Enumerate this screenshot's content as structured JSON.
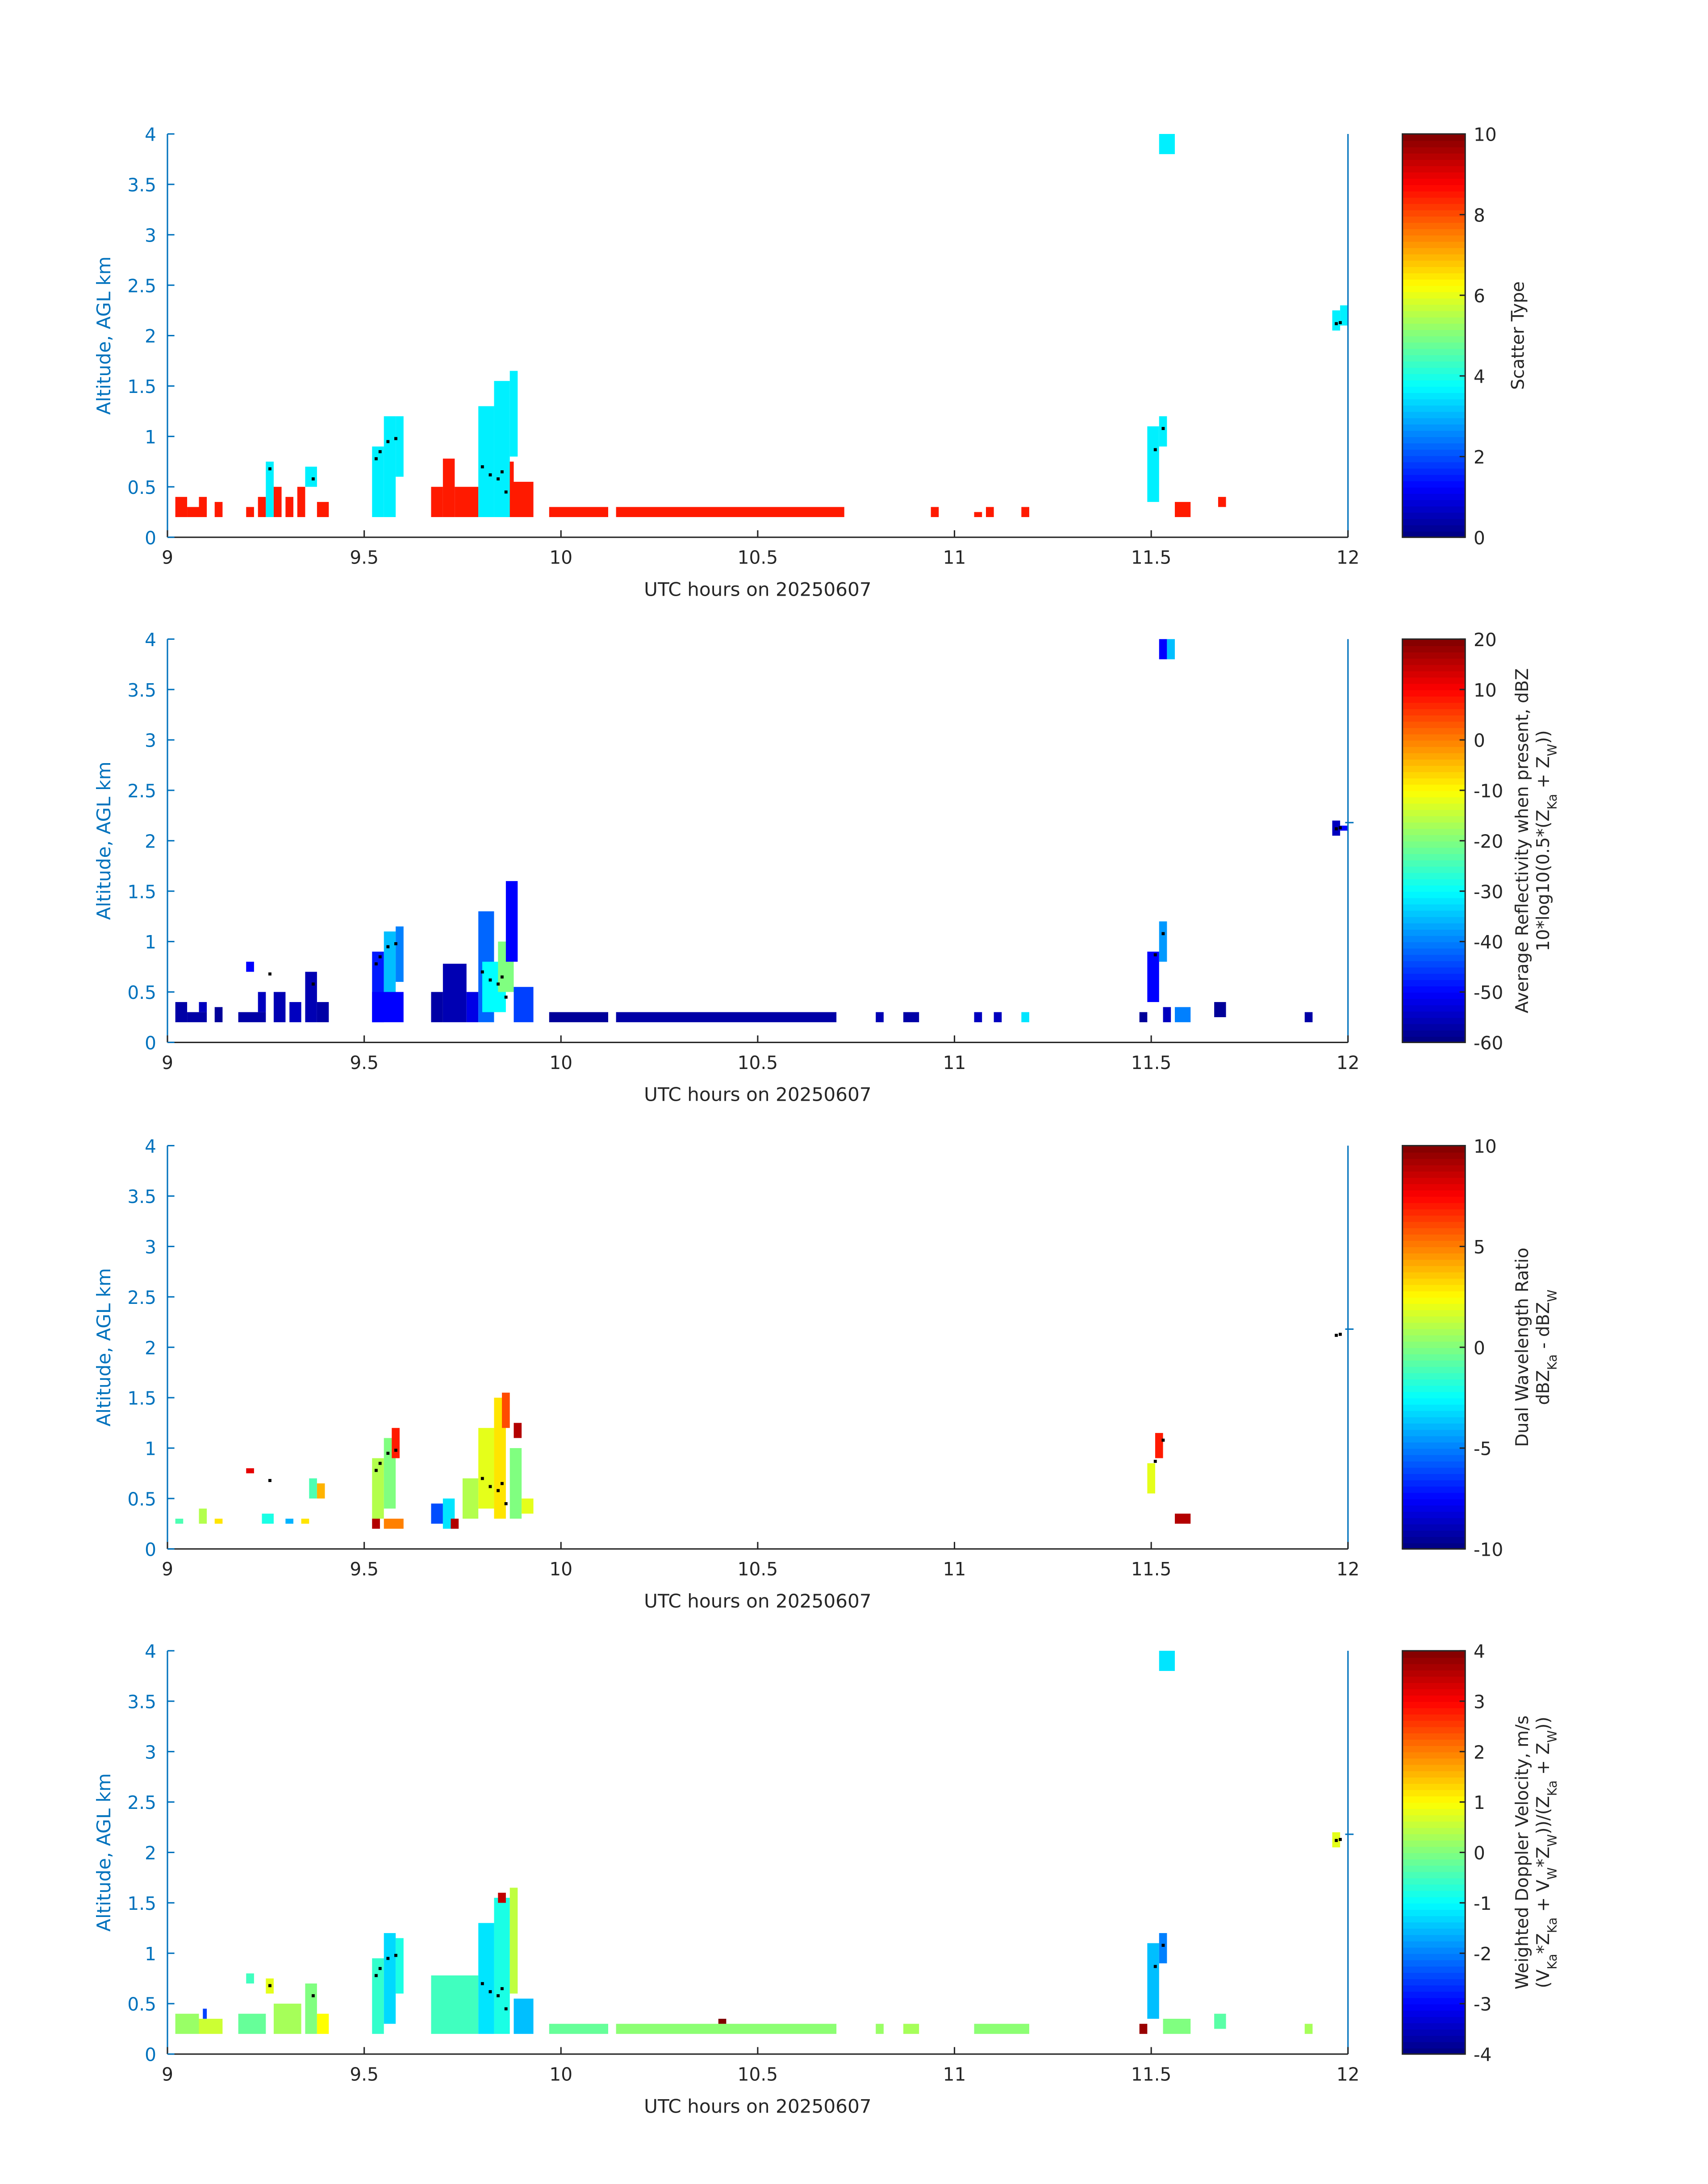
{
  "xlim": [
    9,
    12
  ],
  "ylim": [
    0,
    4
  ],
  "xticks": [
    9,
    9.5,
    10,
    10.5,
    11,
    11.5,
    12
  ],
  "xtick_labels": [
    "9",
    "9.5",
    "10",
    "10.5",
    "11",
    "11.5",
    "12"
  ],
  "yticks": [
    0,
    0.5,
    1,
    1.5,
    2,
    2.5,
    3,
    3.5,
    4
  ],
  "ytick_labels": [
    "0",
    "0.5",
    "1",
    "1.5",
    "2",
    "2.5",
    "3",
    "3.5",
    "4"
  ],
  "axis_color": "#0072bd",
  "chart_data": [
    {
      "type": "heatmap",
      "title": "",
      "xlabel": "UTC hours on 20250607",
      "ylabel": "Altitude, AGL km",
      "colorbar": {
        "label": "Scatter Type",
        "label2": "",
        "clim": [
          0,
          10
        ],
        "ticks": [
          0,
          2,
          4,
          6,
          8,
          10
        ],
        "tick_labels": [
          "0",
          "2",
          "4",
          "6",
          "8",
          "10"
        ]
      },
      "cells": [
        [
          9.02,
          9.05,
          0.2,
          0.4,
          8.5
        ],
        [
          9.05,
          9.08,
          0.2,
          0.3,
          8.5
        ],
        [
          9.08,
          9.1,
          0.2,
          0.4,
          8.5
        ],
        [
          9.12,
          9.14,
          0.2,
          0.35,
          8.5
        ],
        [
          9.2,
          9.22,
          0.2,
          0.3,
          8.5
        ],
        [
          9.23,
          9.25,
          0.2,
          0.4,
          8.5
        ],
        [
          9.27,
          9.29,
          0.2,
          0.5,
          8.5
        ],
        [
          9.3,
          9.32,
          0.2,
          0.4,
          8.5
        ],
        [
          9.33,
          9.35,
          0.2,
          0.5,
          8.5
        ],
        [
          9.38,
          9.41,
          0.2,
          0.35,
          8.5
        ],
        [
          9.67,
          9.7,
          0.2,
          0.5,
          8.5
        ],
        [
          9.7,
          9.73,
          0.2,
          0.78,
          8.5
        ],
        [
          9.73,
          9.79,
          0.2,
          0.5,
          8.5
        ],
        [
          9.86,
          9.88,
          0.2,
          0.75,
          8.5
        ],
        [
          9.88,
          9.93,
          0.2,
          0.55,
          8.5
        ],
        [
          9.97,
          10.12,
          0.2,
          0.3,
          8.5
        ],
        [
          10.14,
          10.72,
          0.2,
          0.3,
          8.5
        ],
        [
          10.94,
          10.96,
          0.2,
          0.3,
          8.5
        ],
        [
          11.05,
          11.07,
          0.2,
          0.25,
          8.5
        ],
        [
          11.08,
          11.1,
          0.2,
          0.3,
          8.5
        ],
        [
          11.17,
          11.19,
          0.2,
          0.3,
          8.5
        ],
        [
          11.56,
          11.6,
          0.2,
          0.35,
          8.5
        ],
        [
          11.67,
          11.69,
          0.3,
          0.4,
          8.5
        ],
        [
          9.25,
          9.27,
          0.2,
          0.75,
          3.6
        ],
        [
          9.35,
          9.38,
          0.5,
          0.7,
          3.6
        ],
        [
          9.52,
          9.55,
          0.2,
          0.9,
          3.6
        ],
        [
          9.55,
          9.58,
          0.2,
          1.2,
          3.6
        ],
        [
          9.58,
          9.6,
          0.6,
          1.2,
          3.6
        ],
        [
          9.79,
          9.83,
          0.2,
          1.3,
          3.6
        ],
        [
          9.83,
          9.87,
          0.2,
          1.55,
          3.6
        ],
        [
          9.87,
          9.89,
          0.8,
          1.65,
          3.6
        ],
        [
          11.49,
          11.52,
          0.35,
          1.1,
          3.6
        ],
        [
          11.52,
          11.54,
          0.9,
          1.2,
          3.6
        ],
        [
          11.52,
          11.56,
          3.8,
          4.0,
          3.6
        ],
        [
          11.96,
          11.98,
          2.05,
          2.25,
          3.6
        ],
        [
          11.98,
          12.0,
          2.1,
          2.3,
          3.6
        ]
      ]
    },
    {
      "type": "heatmap",
      "title": "",
      "xlabel": "UTC hours on 20250607",
      "ylabel": "Altitude, AGL km",
      "colorbar": {
        "label": "Average Reflectivity when present, dBZ",
        "label2": "10*log10(0.5*(Z_Ka + Z_W))",
        "clim": [
          -60,
          20
        ],
        "ticks": [
          -60,
          -50,
          -40,
          -30,
          -20,
          -10,
          0,
          10,
          20
        ],
        "tick_labels": [
          "-60",
          "-50",
          "-40",
          "-30",
          "-20",
          "-10",
          "0",
          "10",
          "20"
        ]
      },
      "cells": [
        [
          9.02,
          9.05,
          0.2,
          0.4,
          -57
        ],
        [
          9.05,
          9.1,
          0.2,
          0.3,
          -57
        ],
        [
          9.08,
          9.1,
          0.3,
          0.4,
          -55
        ],
        [
          9.12,
          9.14,
          0.2,
          0.35,
          -58
        ],
        [
          9.18,
          9.25,
          0.2,
          0.3,
          -57
        ],
        [
          9.2,
          9.22,
          0.7,
          0.8,
          -50
        ],
        [
          9.23,
          9.25,
          0.3,
          0.5,
          -55
        ],
        [
          9.27,
          9.3,
          0.2,
          0.5,
          -56
        ],
        [
          9.31,
          9.34,
          0.2,
          0.4,
          -55
        ],
        [
          9.35,
          9.38,
          0.2,
          0.7,
          -56
        ],
        [
          9.38,
          9.41,
          0.2,
          0.4,
          -57
        ],
        [
          9.52,
          9.55,
          0.2,
          0.9,
          -48
        ],
        [
          9.55,
          9.58,
          0.3,
          1.1,
          -35
        ],
        [
          9.58,
          9.6,
          0.6,
          1.15,
          -40
        ],
        [
          9.52,
          9.6,
          0.2,
          0.5,
          -50
        ],
        [
          9.67,
          9.7,
          0.2,
          0.5,
          -57
        ],
        [
          9.7,
          9.76,
          0.2,
          0.78,
          -56
        ],
        [
          9.76,
          9.79,
          0.2,
          0.5,
          -52
        ],
        [
          9.79,
          9.83,
          0.2,
          1.3,
          -42
        ],
        [
          9.8,
          9.86,
          0.3,
          0.8,
          -30
        ],
        [
          9.84,
          9.88,
          0.5,
          1.0,
          -20
        ],
        [
          9.86,
          9.89,
          0.8,
          1.6,
          -50
        ],
        [
          9.88,
          9.93,
          0.2,
          0.55,
          -45
        ],
        [
          9.97,
          10.12,
          0.2,
          0.3,
          -58
        ],
        [
          10.14,
          10.7,
          0.2,
          0.3,
          -57
        ],
        [
          10.8,
          10.82,
          0.2,
          0.3,
          -56
        ],
        [
          10.87,
          10.91,
          0.2,
          0.3,
          -57
        ],
        [
          11.05,
          11.07,
          0.2,
          0.3,
          -55
        ],
        [
          11.1,
          11.12,
          0.2,
          0.3,
          -55
        ],
        [
          11.17,
          11.19,
          0.2,
          0.3,
          -32
        ],
        [
          11.47,
          11.49,
          0.2,
          0.3,
          -58
        ],
        [
          11.49,
          11.52,
          0.4,
          0.9,
          -50
        ],
        [
          11.52,
          11.54,
          0.8,
          1.2,
          -38
        ],
        [
          11.53,
          11.55,
          0.2,
          0.35,
          -55
        ],
        [
          11.56,
          11.6,
          0.2,
          0.35,
          -40
        ],
        [
          11.66,
          11.69,
          0.25,
          0.4,
          -58
        ],
        [
          11.89,
          11.91,
          0.2,
          0.3,
          -57
        ],
        [
          11.52,
          11.54,
          3.8,
          4.0,
          -50
        ],
        [
          11.54,
          11.56,
          3.8,
          4.0,
          -35
        ],
        [
          11.96,
          11.98,
          2.05,
          2.2,
          -55
        ],
        [
          11.98,
          12.0,
          2.1,
          2.15,
          -50
        ]
      ]
    },
    {
      "type": "heatmap",
      "title": "",
      "xlabel": "UTC hours on 20250607",
      "ylabel": "Altitude, AGL km",
      "colorbar": {
        "label": "Dual Wavelength Ratio",
        "label2": "dBZ_Ka - dBZ_W",
        "clim": [
          -10,
          10
        ],
        "ticks": [
          -10,
          -5,
          0,
          5,
          10
        ],
        "tick_labels": [
          "-10",
          "-5",
          "0",
          "5",
          "10"
        ]
      },
      "cells": [
        [
          9.02,
          9.04,
          0.25,
          0.3,
          -1
        ],
        [
          9.08,
          9.1,
          0.25,
          0.4,
          1
        ],
        [
          9.12,
          9.14,
          0.25,
          0.3,
          3
        ],
        [
          9.2,
          9.22,
          0.75,
          0.8,
          8
        ],
        [
          9.24,
          9.27,
          0.25,
          0.35,
          -2
        ],
        [
          9.3,
          9.32,
          0.25,
          0.3,
          -4
        ],
        [
          9.34,
          9.36,
          0.25,
          0.3,
          3
        ],
        [
          9.36,
          9.38,
          0.5,
          0.7,
          -1
        ],
        [
          9.38,
          9.4,
          0.5,
          0.65,
          4
        ],
        [
          9.52,
          9.55,
          0.3,
          0.9,
          1
        ],
        [
          9.52,
          9.54,
          0.2,
          0.3,
          9
        ],
        [
          9.55,
          9.58,
          0.4,
          1.1,
          0
        ],
        [
          9.57,
          9.59,
          0.9,
          1.2,
          7
        ],
        [
          9.55,
          9.6,
          0.2,
          0.3,
          5
        ],
        [
          9.67,
          9.7,
          0.25,
          0.45,
          -6
        ],
        [
          9.7,
          9.73,
          0.2,
          0.5,
          -3
        ],
        [
          9.72,
          9.74,
          0.2,
          0.3,
          9
        ],
        [
          9.75,
          9.79,
          0.3,
          0.7,
          1
        ],
        [
          9.79,
          9.83,
          0.4,
          1.2,
          2
        ],
        [
          9.83,
          9.86,
          0.3,
          1.5,
          3
        ],
        [
          9.85,
          9.87,
          1.2,
          1.55,
          6
        ],
        [
          9.87,
          9.9,
          0.3,
          1.0,
          0
        ],
        [
          9.88,
          9.9,
          1.1,
          1.25,
          9
        ],
        [
          9.9,
          9.93,
          0.35,
          0.5,
          2
        ],
        [
          11.49,
          11.51,
          0.55,
          0.85,
          2
        ],
        [
          11.51,
          11.53,
          0.9,
          1.15,
          7
        ],
        [
          11.56,
          11.6,
          0.25,
          0.35,
          9
        ]
      ]
    },
    {
      "type": "heatmap",
      "title": "",
      "xlabel": "UTC hours on 20250607",
      "ylabel": "Altitude, AGL km",
      "colorbar": {
        "label": "Weighted Doppler Velocity, m/s",
        "label2": "(V_Ka*Z_Ka + V_W*Z_W))/(Z_Ka + Z_W))",
        "clim": [
          -4,
          4
        ],
        "ticks": [
          -4,
          -3,
          -2,
          -1,
          0,
          1,
          2,
          3,
          4
        ],
        "tick_labels": [
          "-4",
          "-3",
          "-2",
          "-1",
          "0",
          "1",
          "2",
          "3",
          "4"
        ]
      },
      "cells": [
        [
          9.02,
          9.08,
          0.2,
          0.4,
          0.2
        ],
        [
          9.09,
          9.1,
          0.35,
          0.45,
          -2.5
        ],
        [
          9.08,
          9.14,
          0.2,
          0.35,
          0.6
        ],
        [
          9.18,
          9.25,
          0.2,
          0.4,
          -0.2
        ],
        [
          9.2,
          9.22,
          0.7,
          0.8,
          -0.5
        ],
        [
          9.25,
          9.27,
          0.6,
          0.75,
          0.8
        ],
        [
          9.27,
          9.34,
          0.2,
          0.5,
          0.3
        ],
        [
          9.35,
          9.38,
          0.2,
          0.7,
          0.0
        ],
        [
          9.38,
          9.41,
          0.2,
          0.4,
          1.0
        ],
        [
          9.52,
          9.55,
          0.2,
          0.95,
          -0.6
        ],
        [
          9.55,
          9.58,
          0.3,
          1.2,
          -1.3
        ],
        [
          9.58,
          9.6,
          0.6,
          1.15,
          -0.8
        ],
        [
          9.67,
          9.79,
          0.2,
          0.78,
          -0.5
        ],
        [
          9.79,
          9.83,
          0.2,
          1.3,
          -1.2
        ],
        [
          9.83,
          9.87,
          0.2,
          1.55,
          -0.8
        ],
        [
          9.84,
          9.86,
          1.5,
          1.6,
          3.5
        ],
        [
          9.87,
          9.89,
          0.6,
          1.65,
          0.5
        ],
        [
          9.88,
          9.93,
          0.2,
          0.55,
          -1.5
        ],
        [
          9.97,
          10.12,
          0.2,
          0.3,
          -0.2
        ],
        [
          10.14,
          10.7,
          0.2,
          0.3,
          0.1
        ],
        [
          10.4,
          10.42,
          0.3,
          0.35,
          4
        ],
        [
          10.8,
          10.82,
          0.2,
          0.3,
          0.2
        ],
        [
          10.87,
          10.91,
          0.2,
          0.3,
          0.3
        ],
        [
          11.05,
          11.19,
          0.2,
          0.3,
          0.1
        ],
        [
          11.47,
          11.49,
          0.2,
          0.3,
          3.8
        ],
        [
          11.49,
          11.52,
          0.35,
          1.1,
          -1.5
        ],
        [
          11.52,
          11.54,
          0.9,
          1.2,
          -2
        ],
        [
          11.53,
          11.6,
          0.2,
          0.35,
          0
        ],
        [
          11.66,
          11.69,
          0.25,
          0.4,
          -0.3
        ],
        [
          11.89,
          11.91,
          0.2,
          0.3,
          0.3
        ],
        [
          11.52,
          11.56,
          3.8,
          4.0,
          -1.2
        ],
        [
          11.96,
          11.98,
          2.05,
          2.2,
          0.8
        ]
      ]
    }
  ],
  "points": [
    [
      9.26,
      0.68
    ],
    [
      9.37,
      0.58
    ],
    [
      9.53,
      0.78
    ],
    [
      9.54,
      0.85
    ],
    [
      9.56,
      0.95
    ],
    [
      9.58,
      0.98
    ],
    [
      9.8,
      0.7
    ],
    [
      9.82,
      0.62
    ],
    [
      9.84,
      0.58
    ],
    [
      9.85,
      0.65
    ],
    [
      9.86,
      0.45
    ],
    [
      11.51,
      0.87
    ],
    [
      11.53,
      1.08
    ],
    [
      11.97,
      2.12
    ],
    [
      11.98,
      2.13
    ]
  ]
}
